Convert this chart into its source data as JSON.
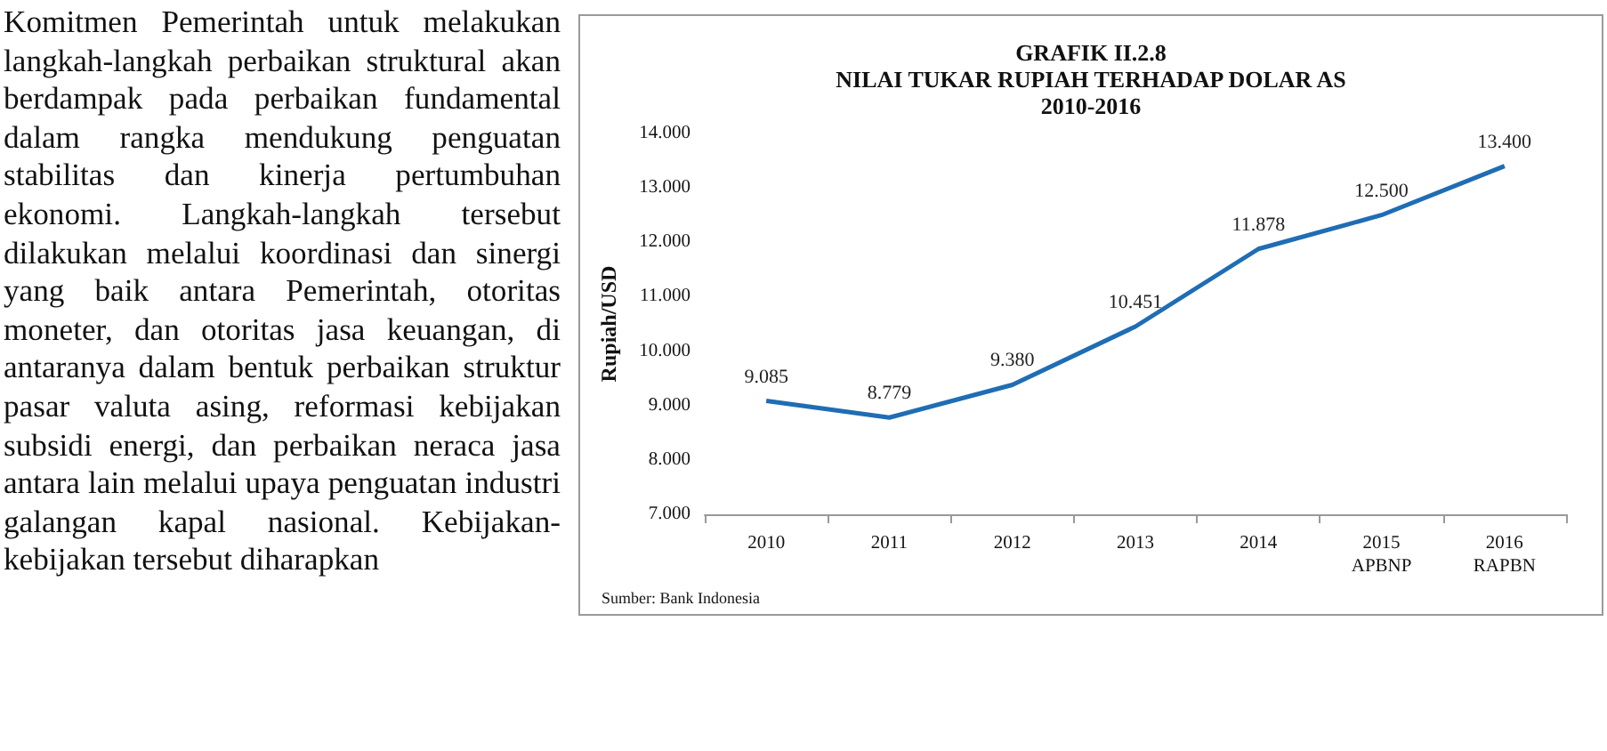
{
  "chart_data": {
    "type": "line",
    "title": "GRAFIK II.2.8\nNILAI TUKAR RUPIAH TERHADAP DOLAR AS\n2010-2016",
    "ylabel": "Rupiah/USD",
    "categories": [
      "2010",
      "2011",
      "2012",
      "2013",
      "2014",
      "2015\nAPBNP",
      "2016\nRAPBN"
    ],
    "series": [
      {
        "color": "#1f6db4",
        "values": [
          9085,
          8779,
          9380,
          10451,
          11878,
          12500,
          13400
        ],
        "value_labels": [
          "9.085",
          "8.779",
          "9.380",
          "10.451",
          "11.878",
          "12.500",
          "13.400"
        ]
      }
    ],
    "ylim": [
      7000,
      14000
    ],
    "yticks": [
      {
        "value": 7000,
        "label": "7.000"
      },
      {
        "value": 8000,
        "label": "8.000"
      },
      {
        "value": 9000,
        "label": "9.000"
      },
      {
        "value": 10000,
        "label": "10.000"
      },
      {
        "value": 11000,
        "label": "11.000"
      },
      {
        "value": 12000,
        "label": "12.000"
      },
      {
        "value": 13000,
        "label": "13.000"
      },
      {
        "value": 14000,
        "label": "14.000"
      }
    ],
    "grid": false,
    "marker": "none",
    "line_style": "solid",
    "annotations": [
      "Sumber: Bank Indonesia",
      "Komitmen Pemerintah untuk melakukan langkah-langkah perbaikan struktural akan berdampak pada perbaikan fundamental dalam rangka mendukung penguatan stabilitas dan kinerja pertumbuhan ekonomi. Langkah-langkah tersebut dilakukan melalui koordinasi dan sinergi yang baik antara Pemerintah, otoritas moneter, dan otoritas jasa keuangan, di antaranya dalam bentuk perbaikan struktur pasar valuta asing, reformasi kebijakan subsidi energi, dan perbaikan neraca jasa antara lain melalui upaya penguatan industri galangan kapal nasional. Kebijakan-kebijakan tersebut diharapkan"
    ]
  }
}
